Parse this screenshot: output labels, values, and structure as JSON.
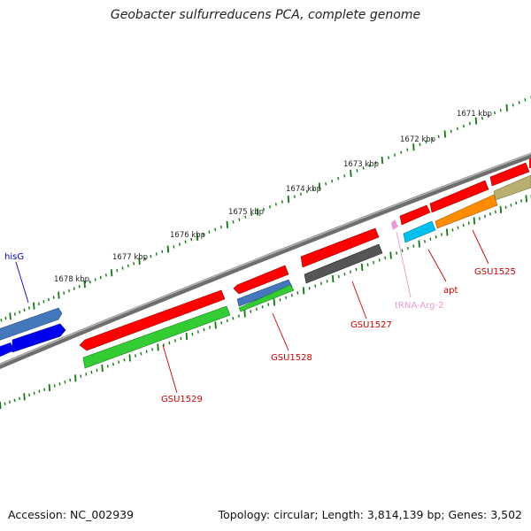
{
  "title": "Geobacter sulfurreducens PCA, complete genome",
  "footer": {
    "accession": "Accession: NC_002939",
    "summary": "Topology: circular; Length: 3,814,139 bp; Genes: 3,502"
  },
  "scale_labels": [
    "1671 kbp",
    "1672 kbp",
    "1673 kbp",
    "1674 kbp",
    "1675 kbp",
    "1676 kbp",
    "1677 kbp",
    "1678 kbp"
  ],
  "gene_labels": [
    {
      "text": "hisG",
      "color": "#0000cc"
    },
    {
      "text": "GSU1529",
      "color": "#cc0000"
    },
    {
      "text": "GSU1528",
      "color": "#cc0000"
    },
    {
      "text": "GSU1527",
      "color": "#cc0000"
    },
    {
      "text": "tRNA-Arg-2",
      "color": "#e79bd0"
    },
    {
      "text": "apt",
      "color": "#cc0000"
    },
    {
      "text": "GSU1525",
      "color": "#cc0000"
    }
  ],
  "colors": {
    "cds": "#ff0000",
    "gene_green": "#33cc33",
    "gene_blue": "#4477bb",
    "gene_darkblue": "#0000ee",
    "gene_gray": "#555555",
    "gene_cyan": "#00c0f0",
    "gene_orange": "#ff8c00",
    "gene_khaki": "#b8b070",
    "trna_pink": "#e79bd0",
    "tick_green": "#117711",
    "backbone": "#808080"
  }
}
